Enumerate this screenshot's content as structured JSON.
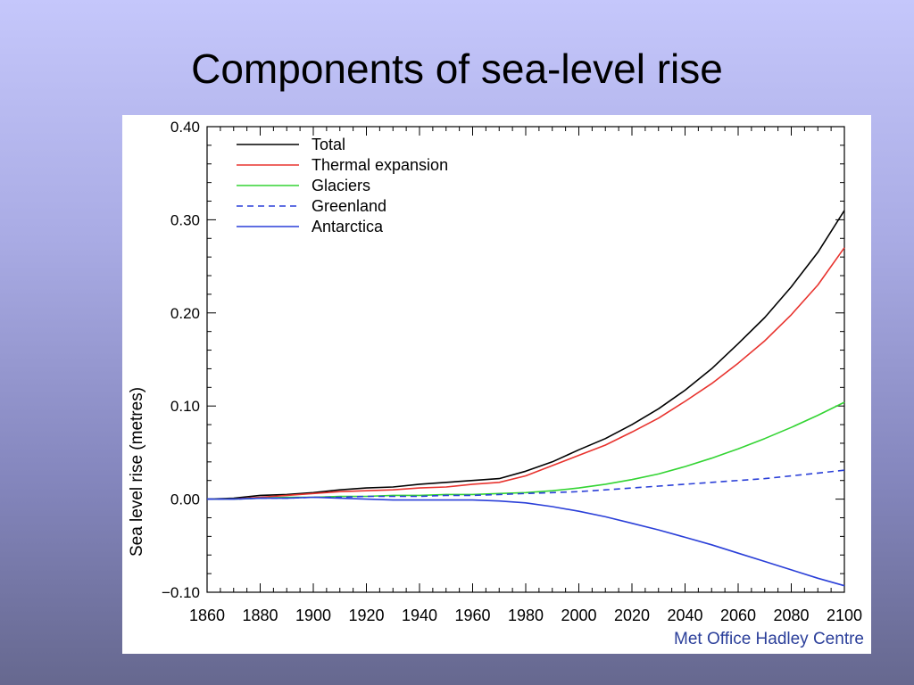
{
  "slide": {
    "title": "Components of sea-level rise"
  },
  "credit": "Met Office Hadley Centre",
  "chart_data": {
    "type": "line",
    "title": "",
    "xlabel": "",
    "ylabel": "Sea level rise (metres)",
    "xlim": [
      1860,
      2100
    ],
    "ylim": [
      -0.1,
      0.4
    ],
    "xticks": [
      1860,
      1880,
      1900,
      1920,
      1940,
      1960,
      1980,
      2000,
      2020,
      2040,
      2060,
      2080,
      2100
    ],
    "yticks": [
      -0.1,
      0.0,
      0.1,
      0.2,
      0.3,
      0.4
    ],
    "ytick_labels": [
      "−0.10",
      "0.00",
      "0.10",
      "0.20",
      "0.30",
      "0.40"
    ],
    "legend_position": "top-left",
    "x": [
      1860,
      1870,
      1880,
      1890,
      1900,
      1910,
      1920,
      1930,
      1940,
      1950,
      1960,
      1970,
      1980,
      1990,
      2000,
      2010,
      2020,
      2030,
      2040,
      2050,
      2060,
      2070,
      2080,
      2090,
      2100
    ],
    "series": [
      {
        "name": "Total",
        "color": "#000000",
        "dash": "solid",
        "values": [
          0.0,
          0.001,
          0.004,
          0.005,
          0.007,
          0.01,
          0.012,
          0.013,
          0.016,
          0.018,
          0.02,
          0.022,
          0.03,
          0.04,
          0.053,
          0.065,
          0.08,
          0.097,
          0.117,
          0.14,
          0.167,
          0.195,
          0.228,
          0.265,
          0.31
        ]
      },
      {
        "name": "Thermal expansion",
        "color": "#e8332e",
        "dash": "solid",
        "values": [
          0.0,
          0.0,
          0.002,
          0.004,
          0.006,
          0.008,
          0.009,
          0.01,
          0.012,
          0.013,
          0.016,
          0.018,
          0.025,
          0.036,
          0.047,
          0.058,
          0.072,
          0.087,
          0.105,
          0.124,
          0.146,
          0.17,
          0.198,
          0.23,
          0.27
        ]
      },
      {
        "name": "Glaciers",
        "color": "#33d433",
        "dash": "solid",
        "values": [
          0.0,
          0.0,
          0.001,
          0.002,
          0.002,
          0.003,
          0.003,
          0.004,
          0.004,
          0.005,
          0.005,
          0.006,
          0.007,
          0.009,
          0.012,
          0.016,
          0.021,
          0.027,
          0.035,
          0.044,
          0.054,
          0.065,
          0.077,
          0.09,
          0.104
        ]
      },
      {
        "name": "Greenland",
        "color": "#2a3fd8",
        "dash": "dashed",
        "values": [
          0.0,
          0.0,
          0.001,
          0.001,
          0.002,
          0.002,
          0.003,
          0.003,
          0.003,
          0.004,
          0.004,
          0.005,
          0.006,
          0.007,
          0.008,
          0.01,
          0.012,
          0.014,
          0.016,
          0.018,
          0.02,
          0.022,
          0.025,
          0.028,
          0.031
        ]
      },
      {
        "name": "Antarctica",
        "color": "#2a3fd8",
        "dash": "solid",
        "values": [
          0.0,
          0.0,
          0.001,
          0.001,
          0.002,
          0.001,
          0.0,
          -0.001,
          -0.001,
          -0.001,
          -0.001,
          -0.002,
          -0.004,
          -0.008,
          -0.013,
          -0.019,
          -0.026,
          -0.033,
          -0.041,
          -0.049,
          -0.058,
          -0.067,
          -0.076,
          -0.085,
          -0.093
        ]
      }
    ]
  }
}
